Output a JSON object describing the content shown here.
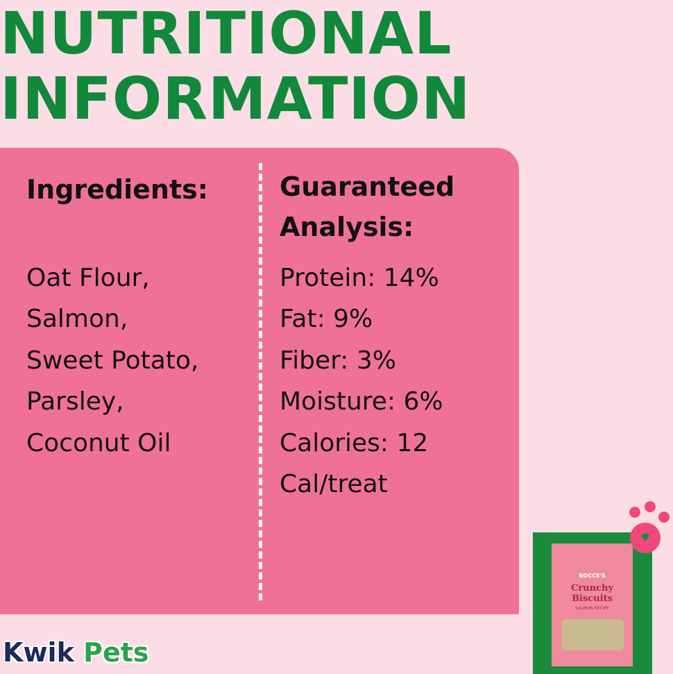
{
  "header": {
    "title_lines": [
      "NUTRITIONAL",
      "INFORMATION"
    ]
  },
  "ingredients": {
    "heading": "Ingredients:",
    "items": [
      "Oat Flour,",
      "Salmon,",
      "Sweet Potato,",
      "Parsley,",
      "Coconut Oil"
    ]
  },
  "analysis": {
    "heading_lines": [
      "Guaranteed",
      "Analysis:"
    ],
    "items": [
      "Protein: 14%",
      "Fat: 9%",
      "Fiber: 3%",
      "Moisture: 6%",
      "Calories: 12",
      "Cal/treat"
    ]
  },
  "brand": {
    "first": "Kwik",
    "second": "Pets"
  },
  "product": {
    "maker": "BOCCE'S",
    "name_lines": [
      "Crunchy",
      "Biscuits"
    ],
    "variant": "SALMON RECIPE"
  }
}
